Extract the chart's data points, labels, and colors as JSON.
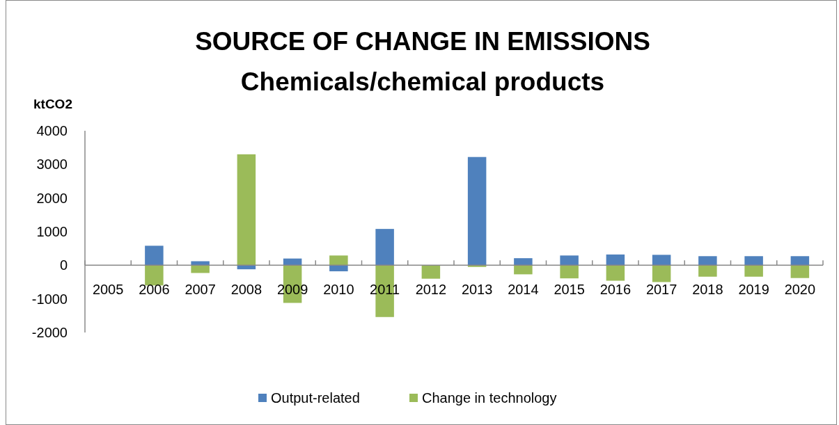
{
  "chart_data": {
    "type": "bar",
    "title": "SOURCE OF CHANGE IN EMISSIONS\nChemicals/chemical products",
    "ylabel": "ktCO2",
    "categories": [
      "2005",
      "2006",
      "2007",
      "2008",
      "2009",
      "2010",
      "2011",
      "2012",
      "2013",
      "2014",
      "2015",
      "2016",
      "2017",
      "2018",
      "2019",
      "2020"
    ],
    "series": [
      {
        "name": "Output-related",
        "color": "#4f81bd",
        "values": [
          null,
          580,
          120,
          -120,
          200,
          -180,
          1080,
          null,
          3220,
          210,
          290,
          320,
          310,
          270,
          270,
          270
        ]
      },
      {
        "name": "Change in technology",
        "color": "#9bbb59",
        "values": [
          null,
          -600,
          -230,
          3300,
          -1120,
          290,
          -1540,
          -400,
          -50,
          -270,
          -390,
          -460,
          -500,
          -340,
          -340,
          -380
        ]
      }
    ],
    "stacked": true,
    "ylim": [
      -2000,
      4000
    ],
    "yticks": [
      -2000,
      -1000,
      0,
      1000,
      2000,
      3000,
      4000
    ],
    "grid": false,
    "legend": "bottom"
  }
}
